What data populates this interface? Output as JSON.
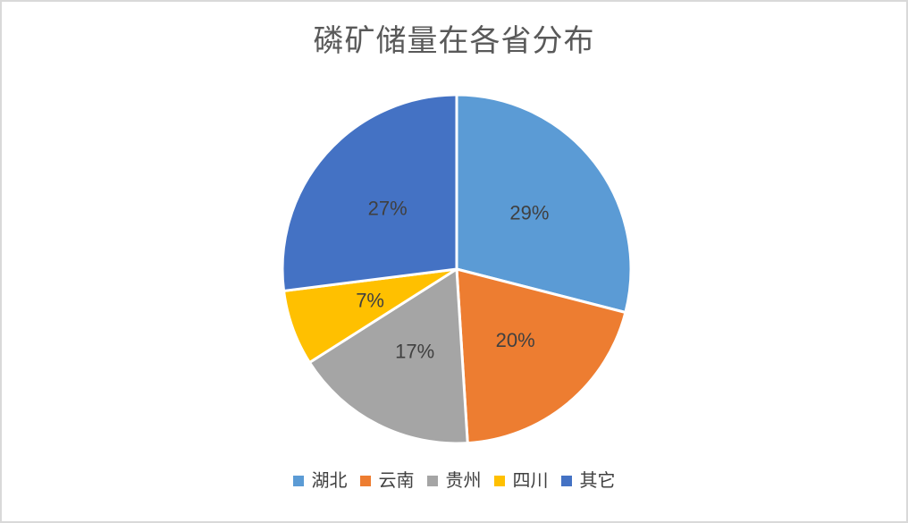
{
  "page": {
    "background": "#FFFFFF",
    "frame_border_color": "#D9D9D9"
  },
  "chart_data": {
    "type": "pie",
    "title": "磷矿储量在各省分布",
    "title_color": "#595959",
    "label_color": "#404040",
    "legend_text_color": "#404040",
    "slice_border_color": "#FFFFFF",
    "direction": "clockwise",
    "start_angle_deg": 0,
    "legend_position": "bottom",
    "data_label_format": "percent",
    "slices": [
      {
        "label": "湖北",
        "value": 29,
        "display": "29%",
        "color": "#5B9BD5"
      },
      {
        "label": "云南",
        "value": 20,
        "display": "20%",
        "color": "#ED7D31"
      },
      {
        "label": "贵州",
        "value": 17,
        "display": "17%",
        "color": "#A5A5A5"
      },
      {
        "label": "四川",
        "value": 7,
        "display": "7%",
        "color": "#FFC000"
      },
      {
        "label": "其它",
        "value": 27,
        "display": "27%",
        "color": "#4472C4"
      }
    ]
  }
}
